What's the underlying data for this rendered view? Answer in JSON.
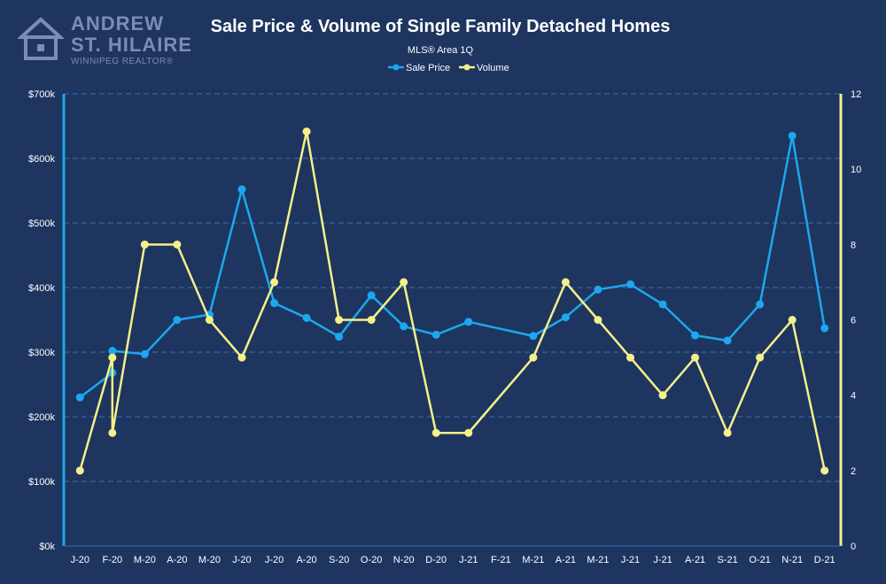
{
  "logo": {
    "line1": "ANDREW",
    "line2": "ST. HILAIRE",
    "line3": "WINNIPEG REALTOR®"
  },
  "chart_data": {
    "type": "line",
    "title": "Sale Price & Volume of Single Family Detached Homes",
    "subtitle": "MLS® Area 1Q",
    "legend_position": "top-center",
    "categories": [
      "J-20",
      "F-20",
      "M-20",
      "A-20",
      "M-20",
      "J-20",
      "J-20",
      "A-20",
      "S-20",
      "O-20",
      "N-20",
      "D-20",
      "J-21",
      "F-21",
      "M-21",
      "A-21",
      "M-21",
      "J-21",
      "J-21",
      "A-21",
      "S-21",
      "O-21",
      "N-21",
      "D-21"
    ],
    "left_axis": {
      "ylim": [
        0,
        700000
      ],
      "tick_labels": [
        "$0k",
        "$100k",
        "$200k",
        "$300k",
        "$400k",
        "$500k",
        "$600k",
        "$700k"
      ]
    },
    "right_axis": {
      "ylim": [
        0,
        12
      ],
      "tick_labels": [
        "0",
        "2",
        "4",
        "6",
        "8",
        "10",
        "12"
      ]
    },
    "series": [
      {
        "name": "Sale Price",
        "axis": "left",
        "color": "#1ba8ee",
        "points": [
          {
            "x": 0,
            "y": 230000
          },
          {
            "x": 1,
            "y": 268000
          },
          {
            "x": 1,
            "y": 302000
          },
          {
            "x": 2,
            "y": 297000
          },
          {
            "x": 3,
            "y": 350000
          },
          {
            "x": 4,
            "y": 358000
          },
          {
            "x": 5,
            "y": 552000
          },
          {
            "x": 6,
            "y": 376000
          },
          {
            "x": 7,
            "y": 353000
          },
          {
            "x": 8,
            "y": 324000
          },
          {
            "x": 9,
            "y": 388000
          },
          {
            "x": 10,
            "y": 340000
          },
          {
            "x": 11,
            "y": 327000
          },
          {
            "x": 12,
            "y": 347000
          },
          {
            "x": 14,
            "y": 325000
          },
          {
            "x": 15,
            "y": 354000
          },
          {
            "x": 16,
            "y": 397000
          },
          {
            "x": 17,
            "y": 405000
          },
          {
            "x": 18,
            "y": 374000
          },
          {
            "x": 19,
            "y": 326000
          },
          {
            "x": 20,
            "y": 318000
          },
          {
            "x": 21,
            "y": 374000
          },
          {
            "x": 22,
            "y": 635000
          },
          {
            "x": 23,
            "y": 337000
          }
        ]
      },
      {
        "name": "Volume",
        "axis": "right",
        "color": "#f4f08a",
        "points": [
          {
            "x": 0,
            "y": 2
          },
          {
            "x": 1,
            "y": 5
          },
          {
            "x": 1,
            "y": 3
          },
          {
            "x": 2,
            "y": 8
          },
          {
            "x": 3,
            "y": 8
          },
          {
            "x": 4,
            "y": 6
          },
          {
            "x": 5,
            "y": 5
          },
          {
            "x": 6,
            "y": 7
          },
          {
            "x": 7,
            "y": 11
          },
          {
            "x": 8,
            "y": 6
          },
          {
            "x": 9,
            "y": 6
          },
          {
            "x": 10,
            "y": 7
          },
          {
            "x": 11,
            "y": 3
          },
          {
            "x": 12,
            "y": 3
          },
          {
            "x": 14,
            "y": 5
          },
          {
            "x": 15,
            "y": 7
          },
          {
            "x": 16,
            "y": 6
          },
          {
            "x": 17,
            "y": 5
          },
          {
            "x": 18,
            "y": 4
          },
          {
            "x": 19,
            "y": 5
          },
          {
            "x": 20,
            "y": 3
          },
          {
            "x": 21,
            "y": 5
          },
          {
            "x": 22,
            "y": 6
          },
          {
            "x": 23,
            "y": 2
          }
        ]
      }
    ]
  }
}
